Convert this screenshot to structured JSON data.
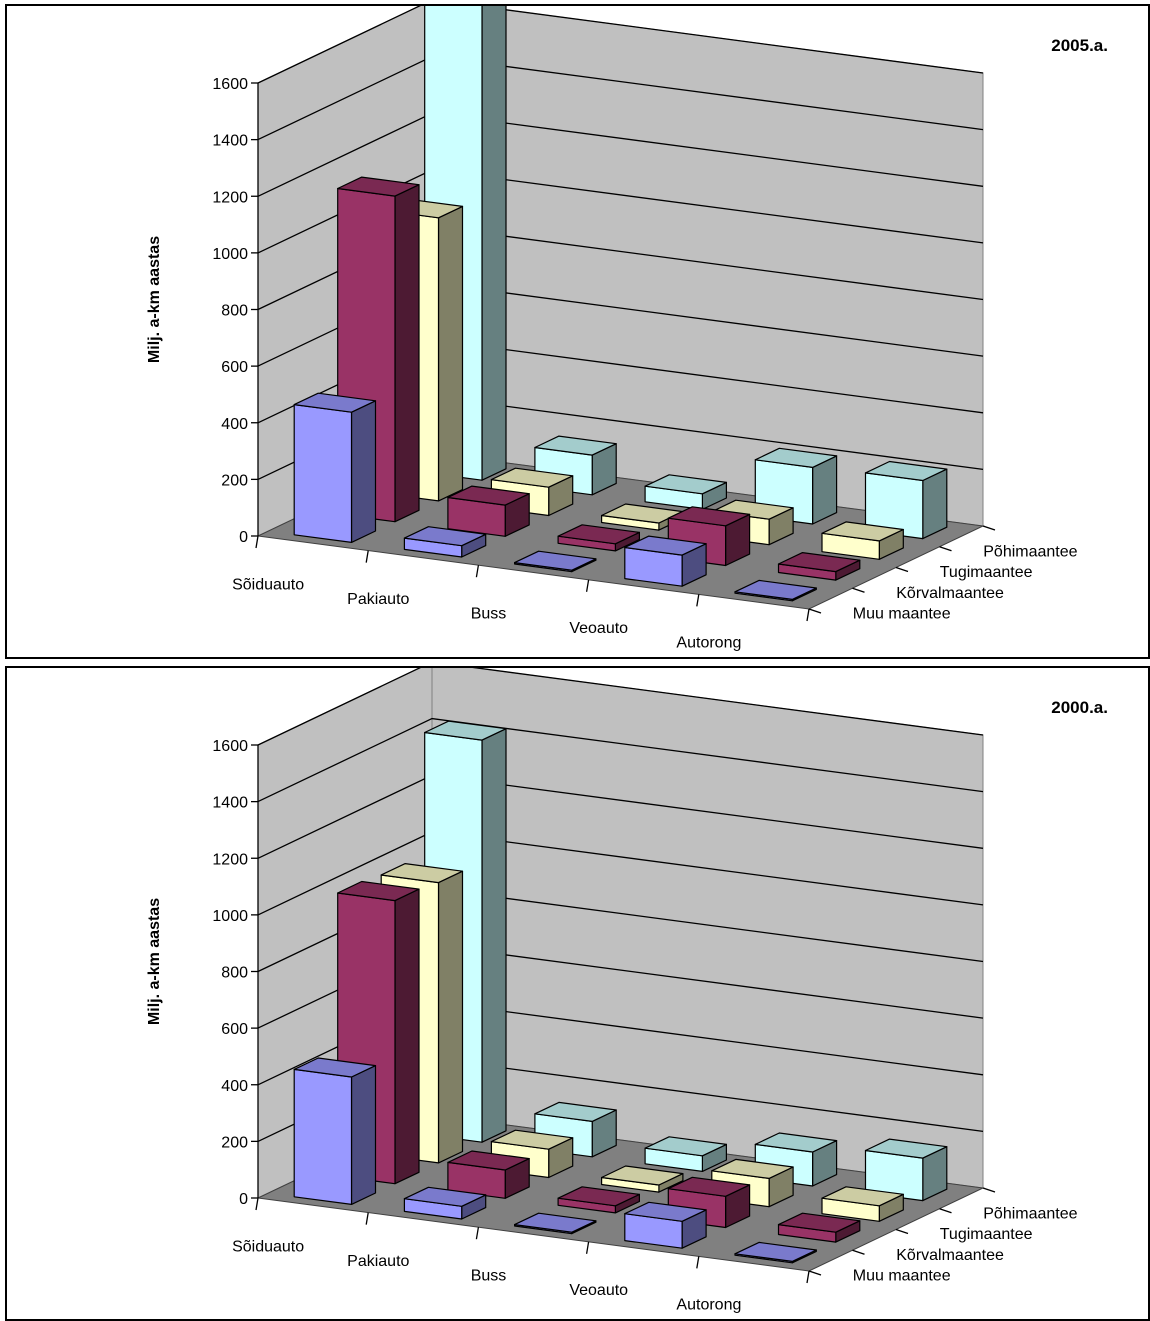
{
  "chart_data": [
    {
      "type": "bar3d",
      "title": "2005.a.",
      "ylabel": "Milj. a-km aastas",
      "ylim": [
        0,
        1600
      ],
      "yticks": [
        0,
        200,
        400,
        600,
        800,
        1000,
        1200,
        1400,
        1600
      ],
      "categories": [
        "Sõiduauto",
        "Pakiauto",
        "Buss",
        "Veoauto",
        "Autorong"
      ],
      "series": [
        {
          "name": "Muu maantee",
          "color": "#9999ff",
          "values": [
            460,
            40,
            5,
            110,
            5
          ]
        },
        {
          "name": "Kõrvalmaantee",
          "color": "#993366",
          "values": [
            1150,
            110,
            25,
            140,
            30
          ]
        },
        {
          "name": "Tugimaantee",
          "color": "#ffffcc",
          "values": [
            1000,
            100,
            25,
            90,
            65
          ]
        },
        {
          "name": "Põhimaantee",
          "color": "#ccffff",
          "values": [
            1800,
            140,
            55,
            200,
            205
          ]
        }
      ],
      "grid": true,
      "legend": "none"
    },
    {
      "type": "bar3d",
      "title": "2000.a.",
      "ylabel": "Milj. a-km aastas",
      "ylim": [
        0,
        1600
      ],
      "yticks": [
        0,
        200,
        400,
        600,
        800,
        1000,
        1200,
        1400,
        1600
      ],
      "categories": [
        "Sõiduauto",
        "Pakiauto",
        "Buss",
        "Veoauto",
        "Autorong"
      ],
      "series": [
        {
          "name": "Muu maantee",
          "color": "#9999ff",
          "values": [
            450,
            45,
            5,
            95,
            5
          ]
        },
        {
          "name": "Kõrvalmaantee",
          "color": "#993366",
          "values": [
            1000,
            100,
            25,
            110,
            35
          ]
        },
        {
          "name": "Tugimaantee",
          "color": "#ffffcc",
          "values": [
            990,
            100,
            25,
            100,
            55
          ]
        },
        {
          "name": "Põhimaantee",
          "color": "#ccffff",
          "values": [
            1420,
            125,
            55,
            120,
            150
          ]
        }
      ],
      "grid": true,
      "legend": "none"
    }
  ]
}
